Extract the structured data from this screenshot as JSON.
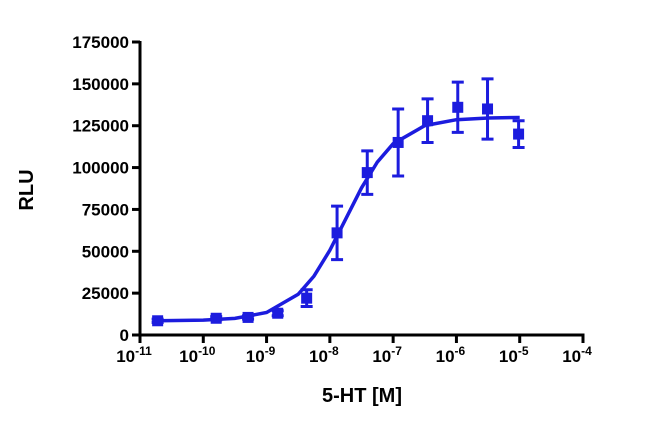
{
  "chart_data": {
    "type": "scatter",
    "xlabel": "5-HT [M]",
    "ylabel": "RLU",
    "x": [
      1.9e-11,
      1.6e-10,
      5.1e-10,
      1.5e-09,
      4.3e-09,
      1.3e-08,
      3.9e-08,
      1.2e-07,
      3.5e-07,
      1.05e-06,
      3.1e-06,
      9.6e-06
    ],
    "values": [
      8500,
      10000,
      10500,
      13000,
      22000,
      61000,
      97000,
      115000,
      128000,
      136000,
      135000,
      120000
    ],
    "errors": [
      1000,
      1000,
      1000,
      1500,
      5000,
      16000,
      13000,
      20000,
      13000,
      15000,
      18000,
      8000
    ],
    "color": "#1c1cde",
    "curve": {
      "x": [
        1.9e-11,
        1e-10,
        3.16e-10,
        1e-09,
        3.16e-09,
        5.62e-09,
        1e-08,
        1.78e-08,
        3.16e-08,
        5.62e-08,
        1e-07,
        3.16e-07,
        1e-06,
        3.16e-06,
        1e-05
      ],
      "values": [
        8565,
        8905,
        9930,
        13420,
        24320,
        35200,
        50630,
        69250,
        87860,
        103280,
        114190,
        125080,
        128570,
        129590,
        129885
      ]
    },
    "log_x": true,
    "xlim": [
      1e-11,
      0.0001
    ],
    "xticks": [
      {
        "value": 1e-11,
        "label": "10",
        "exponent": "-11"
      },
      {
        "value": 1e-10,
        "label": "10",
        "exponent": "-10"
      },
      {
        "value": 1e-09,
        "label": "10",
        "exponent": "-9"
      },
      {
        "value": 1e-08,
        "label": "10",
        "exponent": "-8"
      },
      {
        "value": 1e-07,
        "label": "10",
        "exponent": "-7"
      },
      {
        "value": 1e-06,
        "label": "10",
        "exponent": "-6"
      },
      {
        "value": 1e-05,
        "label": "10",
        "exponent": "-5"
      },
      {
        "value": 0.0001,
        "label": "10",
        "exponent": "-4"
      }
    ],
    "ylim": [
      0,
      175000
    ],
    "yticks": [
      0,
      25000,
      50000,
      75000,
      100000,
      125000,
      150000,
      175000
    ]
  }
}
